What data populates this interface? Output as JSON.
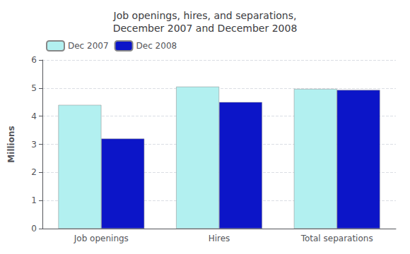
{
  "chart_data": {
    "type": "bar",
    "title": "Job openings, hires, and separations,\nDecember 2007 and December 2008",
    "categories": [
      "Job openings",
      "Hires",
      "Total separations"
    ],
    "series": [
      {
        "name": "Dec 2007",
        "color": "#b2f0f0",
        "values": [
          4.4,
          5.05,
          4.97
        ]
      },
      {
        "name": "Dec 2008",
        "color": "#0c15c8",
        "values": [
          3.2,
          4.5,
          4.93
        ]
      }
    ],
    "ylabel": "Millions",
    "ylim": [
      0,
      6
    ],
    "yticks": [
      0,
      1,
      2,
      3,
      4,
      5,
      6
    ],
    "grid": true,
    "legend": "upper left"
  }
}
